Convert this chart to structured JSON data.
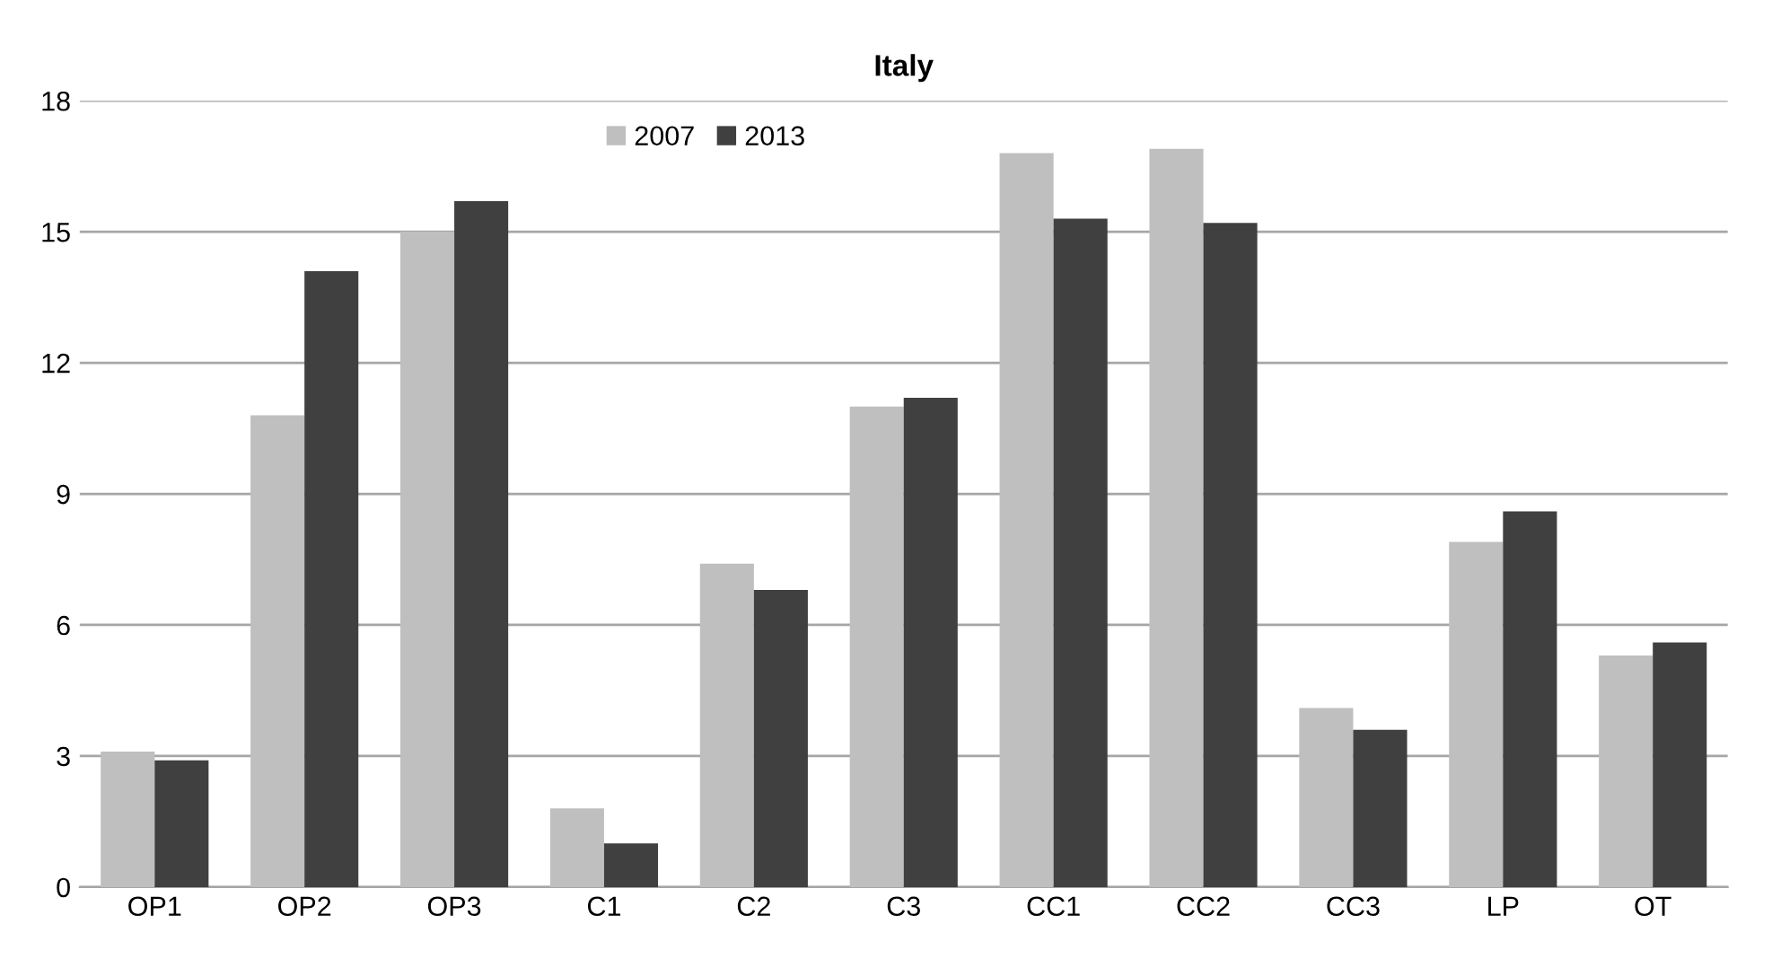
{
  "chart_data": {
    "type": "bar",
    "title": "Italy",
    "categories": [
      "OP1",
      "OP2",
      "OP3",
      "C1",
      "C2",
      "C3",
      "CC1",
      "CC2",
      "CC3",
      "LP",
      "OT"
    ],
    "series": [
      {
        "name": "2007",
        "color": "#bfbfbf",
        "values": [
          3.1,
          10.8,
          15.0,
          1.8,
          7.4,
          11.0,
          16.8,
          16.9,
          4.1,
          7.9,
          5.3
        ]
      },
      {
        "name": "2013",
        "color": "#404040",
        "values": [
          2.9,
          14.1,
          15.7,
          1.0,
          6.8,
          11.2,
          15.3,
          15.2,
          3.6,
          8.6,
          5.6
        ]
      }
    ],
    "ylim": [
      0,
      18
    ],
    "yticks": [
      0,
      3,
      6,
      9,
      12,
      15,
      18
    ],
    "grid": "y",
    "legend": "top"
  }
}
